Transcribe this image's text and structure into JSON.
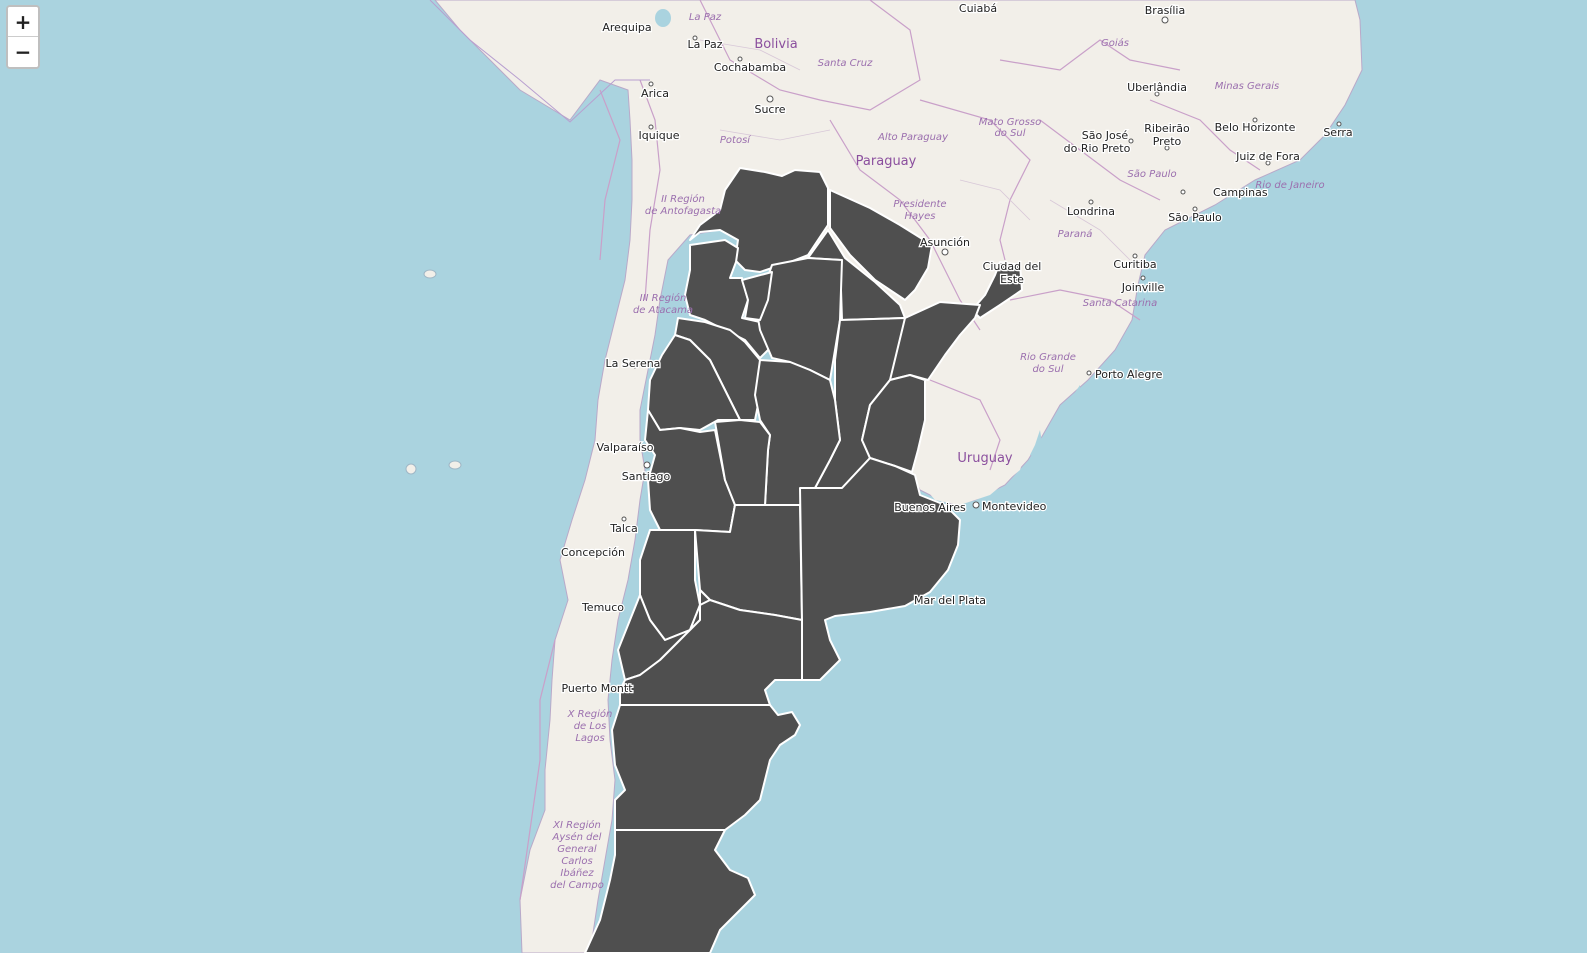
{
  "zoom": {
    "in_label": "+",
    "out_label": "−"
  },
  "colors": {
    "water": "#aad3df",
    "land": "#f2efe9",
    "region": "#4f4f4f",
    "region_border": "#ffffff",
    "admin_border": "#c9a0c9",
    "country_label": "#8b4f9e",
    "state_label": "#9b6fae"
  },
  "labels": {
    "countries": {
      "bolivia": "Bolivia",
      "paraguay": "Paraguay",
      "uruguay": "Uruguay"
    },
    "cities": {
      "arequipa": "Arequipa",
      "la_paz": "La Paz",
      "cochabamba": "Cochabamba",
      "sucre": "Sucre",
      "arica": "Arica",
      "iquique": "Iquique",
      "cuiaba": "Cuiabá",
      "brasilia": "Brasília",
      "uberlandia": "Uberlândia",
      "sao_jose": "São José",
      "do_rio_preto": "do Rio Preto",
      "ribeirao": "Ribeirão",
      "preto": "Preto",
      "belo_horizonte": "Belo Horizonte",
      "juiz_de_fora": "Juiz de Fora",
      "serra": "Serra",
      "campinas": "Campinas",
      "sao_paulo": "São Paulo",
      "londrina": "Londrina",
      "asuncion": "Asunción",
      "ciudad_del": "Ciudad del",
      "este": "Este",
      "curitiba": "Curitiba",
      "joinville": "Joinville",
      "porto_alegre": "Porto Alegre",
      "la_serena": "La Serena",
      "valparaiso": "Valparaíso",
      "santiago": "Santiago",
      "talca": "Talca",
      "concepcion": "Concepción",
      "temuco": "Temuco",
      "puerto_montt": "Puerto Montt",
      "buenos_aires": "Buenos Aires",
      "montevideo": "Montevideo",
      "mar_del_plata": "Mar del Plata"
    },
    "states": {
      "la_paz": "La Paz",
      "santa_cruz": "Santa Cruz",
      "potosi": "Potosí",
      "goias": "Goiás",
      "minas_gerais": "Minas Gerais",
      "mato_grosso_1": "Mato Grosso",
      "mato_grosso_2": "do Sul",
      "alto_paraguay": "Alto Paraguay",
      "presidente_1": "Presidente",
      "presidente_2": "Hayes",
      "sao_paulo": "São Paulo",
      "rio_de_janeiro": "Rio de Janeiro",
      "parana": "Paraná",
      "santa_catarina": "Santa Catarina",
      "rio_grande_1": "Rio Grande",
      "rio_grande_2": "do Sul",
      "antofagasta_1": "II Región",
      "antofagasta_2": "de Antofagasta",
      "atacama_1": "III Región",
      "atacama_2": "de Atacama",
      "lagos_1": "X Región",
      "lagos_2": "de Los",
      "lagos_3": "Lagos",
      "aysen_1": "XI Región",
      "aysen_2": "Aysén del",
      "aysen_3": "General",
      "aysen_4": "Carlos",
      "aysen_5": "Ibáñez",
      "aysen_6": "del Campo"
    }
  }
}
